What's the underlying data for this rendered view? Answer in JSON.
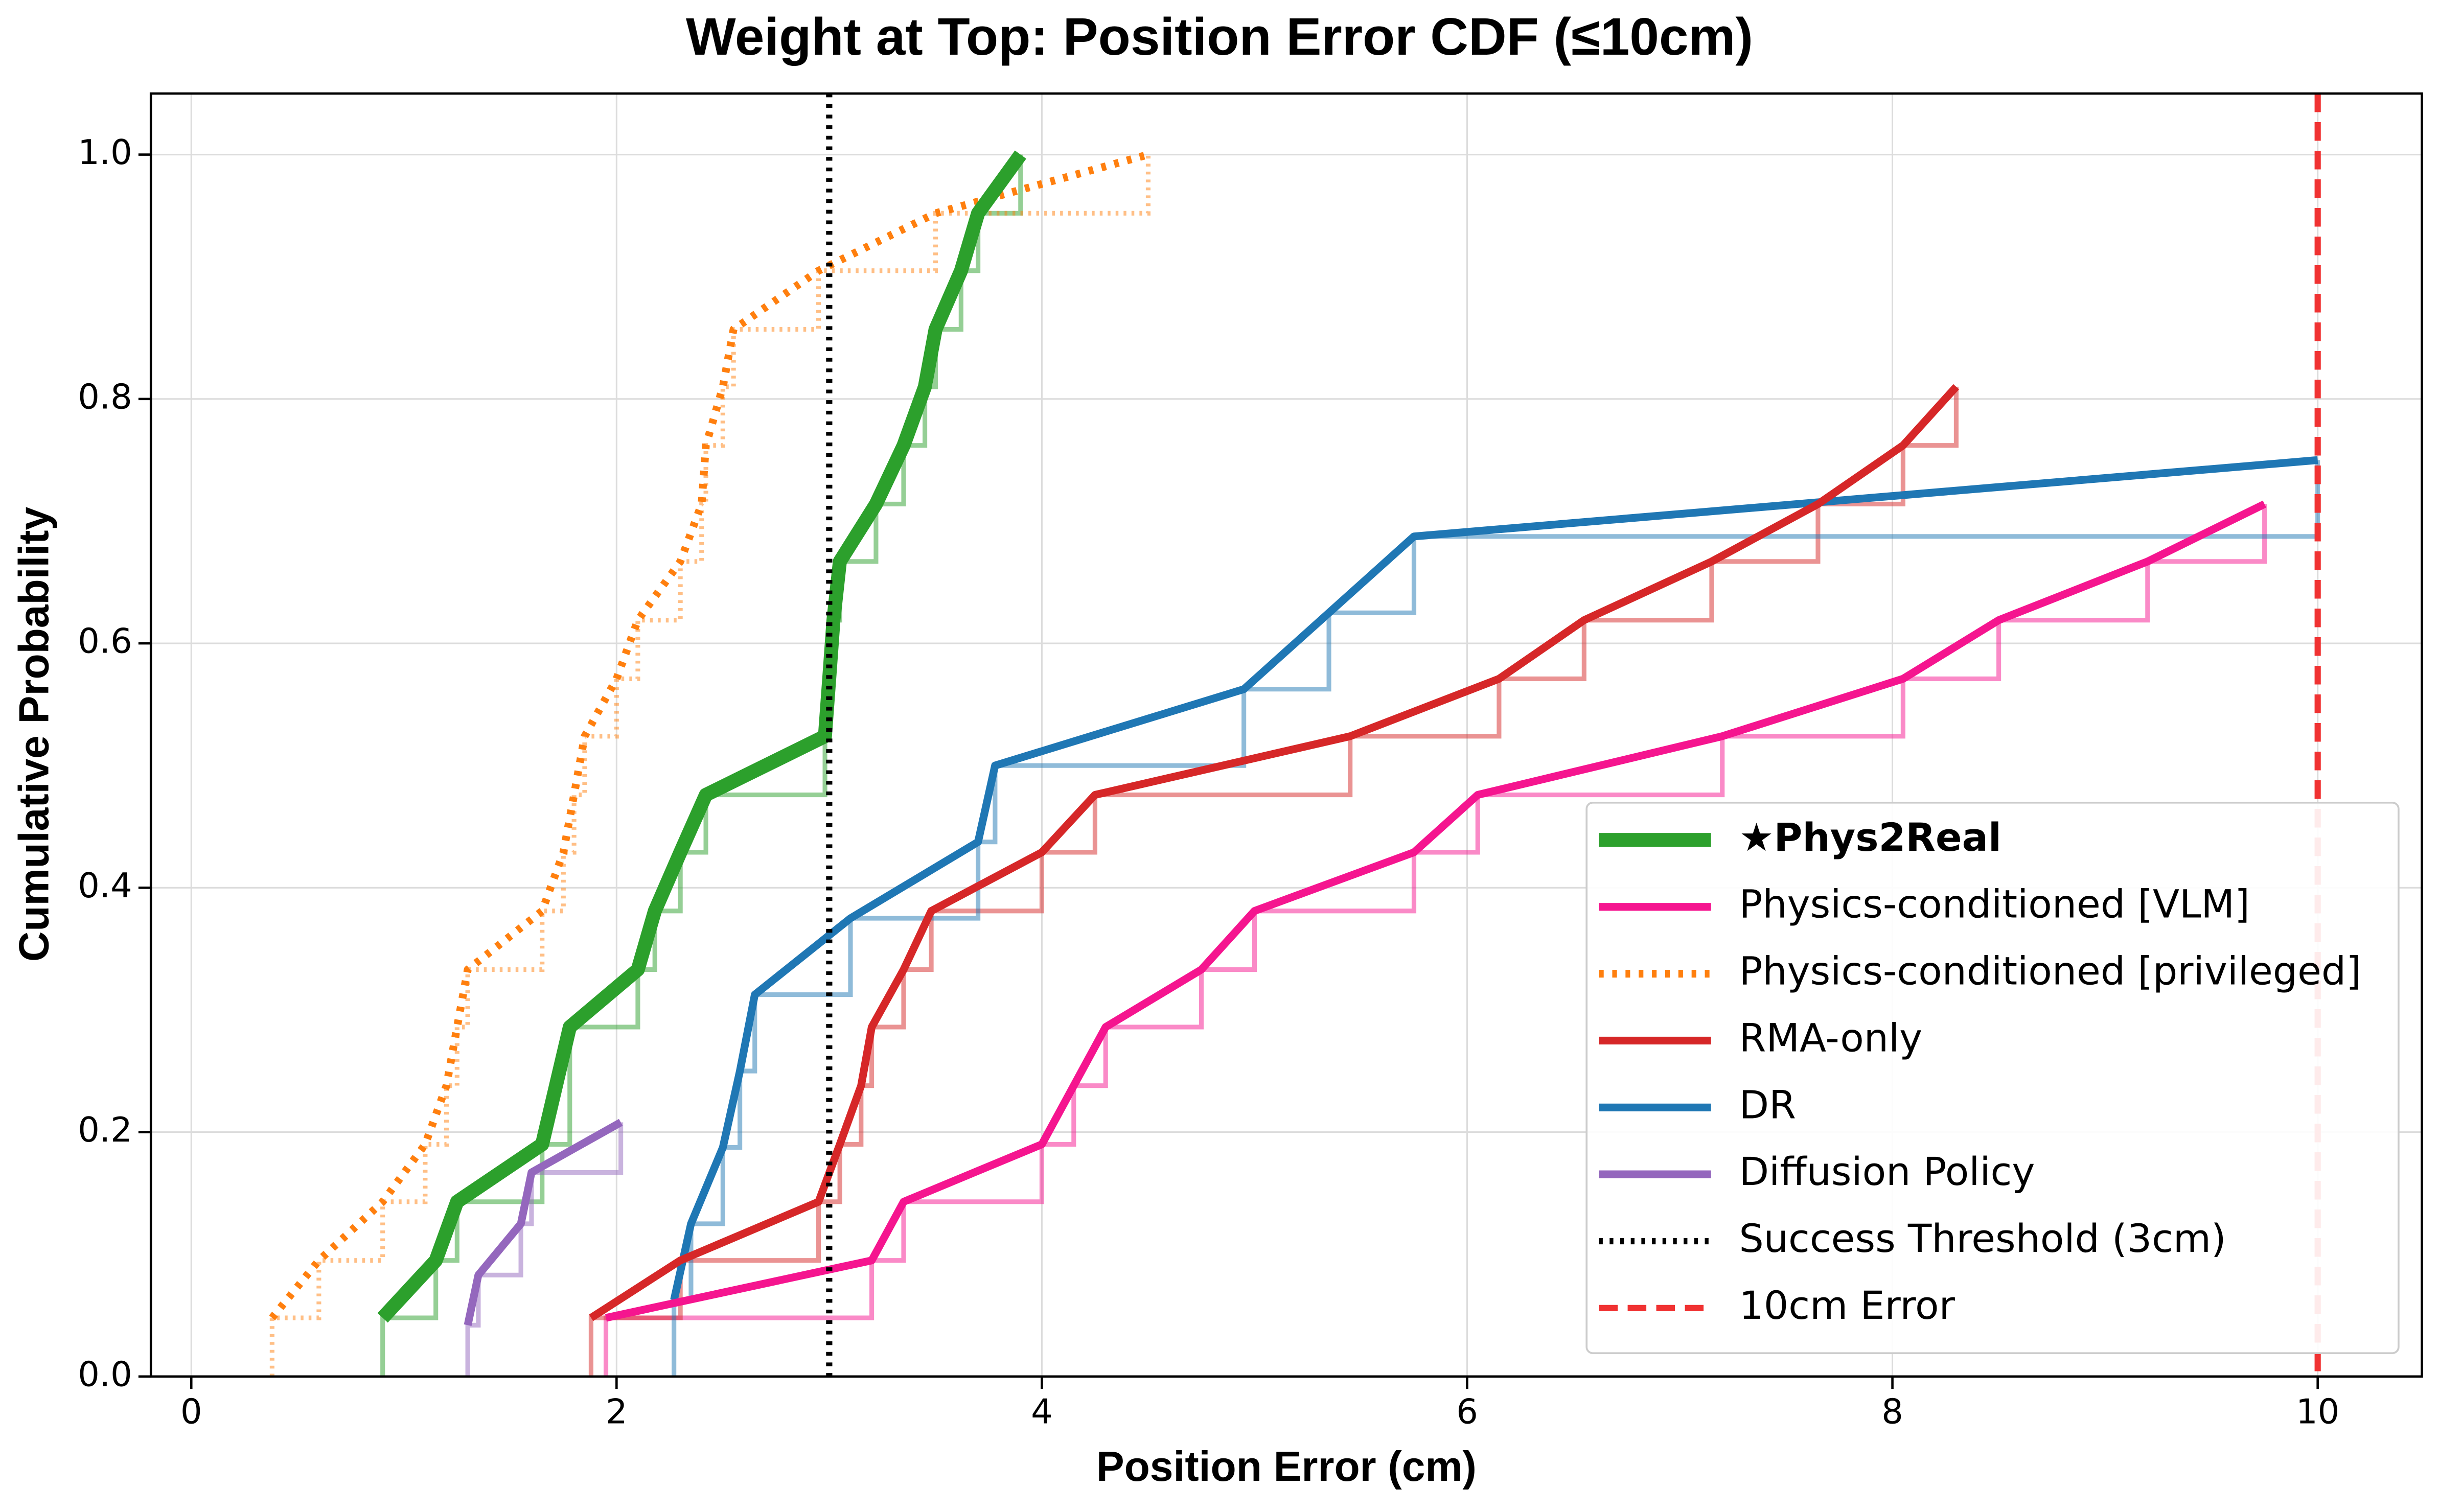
{
  "chart_data": {
    "type": "line",
    "title": "Weight at Top: Position Error CDF (≤10cm)",
    "x_label": "Position Error (cm)",
    "y_label": "Cumulative Probability",
    "xlim": [
      -0.19,
      10.49
    ],
    "ylim": [
      0,
      1.05
    ],
    "xticks": [
      0,
      2,
      4,
      6,
      8,
      10
    ],
    "yticks": [
      {
        "value": 0,
        "label": "0.0"
      },
      0.2,
      0.4,
      0.6,
      0.8,
      {
        "value": 1,
        "label": "1.0"
      }
    ],
    "grid": true,
    "legend": "lower right",
    "series": [
      {
        "name": "★Phys2Real",
        "color": "#2ca02c",
        "style": "solid",
        "width": 9,
        "bold": true,
        "x": [
          0.9,
          1.15,
          1.25,
          1.65,
          1.78,
          2.1,
          2.18,
          2.3,
          2.42,
          2.98,
          3.0,
          3.02,
          3.05,
          3.22,
          3.35,
          3.45,
          3.5,
          3.62,
          3.7,
          3.9
        ],
        "values": [
          0.048,
          0.095,
          0.143,
          0.19,
          0.286,
          0.333,
          0.381,
          0.429,
          0.476,
          0.524,
          0.571,
          0.619,
          0.667,
          0.714,
          0.762,
          0.81,
          0.857,
          0.905,
          0.952,
          1.0
        ]
      },
      {
        "name": "Physics-conditioned [VLM]",
        "color": "#f5158f",
        "style": "solid",
        "width": 5,
        "bold": false,
        "x": [
          1.95,
          3.2,
          3.35,
          4.0,
          4.15,
          4.3,
          4.75,
          5.0,
          5.75,
          6.05,
          7.2,
          8.05,
          8.5,
          9.2,
          9.75
        ],
        "values": [
          0.048,
          0.095,
          0.143,
          0.19,
          0.238,
          0.286,
          0.333,
          0.381,
          0.429,
          0.476,
          0.524,
          0.571,
          0.619,
          0.667,
          0.714
        ]
      },
      {
        "name": "Physics-conditioned [privileged]",
        "color": "#ff7f0e",
        "style": "dotted",
        "width": 5,
        "bold": false,
        "x": [
          0.38,
          0.6,
          0.9,
          1.1,
          1.2,
          1.25,
          1.3,
          1.65,
          1.75,
          1.8,
          1.85,
          2.0,
          2.1,
          2.3,
          2.4,
          2.42,
          2.5,
          2.55,
          2.95,
          3.5,
          4.5
        ],
        "values": [
          0.048,
          0.095,
          0.143,
          0.19,
          0.238,
          0.286,
          0.333,
          0.381,
          0.429,
          0.476,
          0.524,
          0.571,
          0.619,
          0.667,
          0.714,
          0.762,
          0.81,
          0.857,
          0.905,
          0.952,
          1.0
        ]
      },
      {
        "name": "RMA-only",
        "color": "#d62728",
        "style": "solid",
        "width": 5,
        "bold": false,
        "x": [
          1.88,
          2.3,
          2.95,
          3.05,
          3.15,
          3.2,
          3.35,
          3.48,
          4.0,
          4.25,
          5.45,
          6.15,
          6.55,
          7.15,
          7.65,
          8.05,
          8.3
        ],
        "values": [
          0.048,
          0.095,
          0.143,
          0.19,
          0.238,
          0.286,
          0.333,
          0.381,
          0.429,
          0.476,
          0.524,
          0.571,
          0.619,
          0.667,
          0.714,
          0.762,
          0.81
        ]
      },
      {
        "name": "DR",
        "color": "#1f77b4",
        "style": "solid",
        "width": 5,
        "bold": false,
        "x": [
          2.27,
          2.35,
          2.5,
          2.58,
          2.65,
          3.1,
          3.7,
          3.78,
          4.95,
          5.35,
          5.75,
          10.0
        ],
        "values": [
          0.0625,
          0.125,
          0.1875,
          0.25,
          0.3125,
          0.375,
          0.4375,
          0.5,
          0.5625,
          0.625,
          0.6875,
          0.75
        ]
      },
      {
        "name": "Diffusion Policy",
        "color": "#9467bd",
        "style": "solid",
        "width": 5,
        "bold": false,
        "x": [
          1.3,
          1.35,
          1.55,
          1.6,
          2.02
        ],
        "values": [
          0.042,
          0.083,
          0.125,
          0.167,
          0.208
        ]
      }
    ],
    "vlines": [
      {
        "name": "Success Threshold (3cm)",
        "x": 3,
        "color": "#000000",
        "style": "dotted"
      },
      {
        "name": "10cm Error",
        "x": 10,
        "color": "#f03232",
        "style": "dashed"
      }
    ]
  }
}
